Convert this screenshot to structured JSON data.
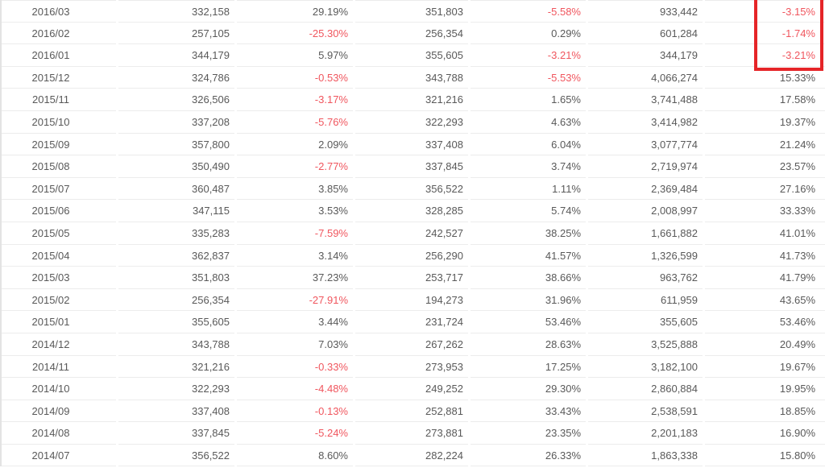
{
  "colors": {
    "background": "#ffffff",
    "text": "#595959",
    "negative_text": "#f0565e",
    "row_border": "#ececec",
    "left_edge": "#e3e3e3",
    "highlight_box": "#e52528"
  },
  "table": {
    "columns": [
      "month",
      "value_1",
      "pct_1",
      "value_2",
      "pct_2",
      "value_3",
      "pct_3"
    ],
    "rows": [
      [
        "2016/03",
        "332,158",
        "29.19%",
        "351,803",
        "-5.58%",
        "933,442",
        "-3.15%"
      ],
      [
        "2016/02",
        "257,105",
        "-25.30%",
        "256,354",
        "0.29%",
        "601,284",
        "-1.74%"
      ],
      [
        "2016/01",
        "344,179",
        "5.97%",
        "355,605",
        "-3.21%",
        "344,179",
        "-3.21%"
      ],
      [
        "2015/12",
        "324,786",
        "-0.53%",
        "343,788",
        "-5.53%",
        "4,066,274",
        "15.33%"
      ],
      [
        "2015/11",
        "326,506",
        "-3.17%",
        "321,216",
        "1.65%",
        "3,741,488",
        "17.58%"
      ],
      [
        "2015/10",
        "337,208",
        "-5.76%",
        "322,293",
        "4.63%",
        "3,414,982",
        "19.37%"
      ],
      [
        "2015/09",
        "357,800",
        "2.09%",
        "337,408",
        "6.04%",
        "3,077,774",
        "21.24%"
      ],
      [
        "2015/08",
        "350,490",
        "-2.77%",
        "337,845",
        "3.74%",
        "2,719,974",
        "23.57%"
      ],
      [
        "2015/07",
        "360,487",
        "3.85%",
        "356,522",
        "1.11%",
        "2,369,484",
        "27.16%"
      ],
      [
        "2015/06",
        "347,115",
        "3.53%",
        "328,285",
        "5.74%",
        "2,008,997",
        "33.33%"
      ],
      [
        "2015/05",
        "335,283",
        "-7.59%",
        "242,527",
        "38.25%",
        "1,661,882",
        "41.01%"
      ],
      [
        "2015/04",
        "362,837",
        "3.14%",
        "256,290",
        "41.57%",
        "1,326,599",
        "41.73%"
      ],
      [
        "2015/03",
        "351,803",
        "37.23%",
        "253,717",
        "38.66%",
        "963,762",
        "41.79%"
      ],
      [
        "2015/02",
        "256,354",
        "-27.91%",
        "194,273",
        "31.96%",
        "611,959",
        "43.65%"
      ],
      [
        "2015/01",
        "355,605",
        "3.44%",
        "231,724",
        "53.46%",
        "355,605",
        "53.46%"
      ],
      [
        "2014/12",
        "343,788",
        "7.03%",
        "267,262",
        "28.63%",
        "3,525,888",
        "20.49%"
      ],
      [
        "2014/11",
        "321,216",
        "-0.33%",
        "273,953",
        "17.25%",
        "3,182,100",
        "19.67%"
      ],
      [
        "2014/10",
        "322,293",
        "-4.48%",
        "249,252",
        "29.30%",
        "2,860,884",
        "19.95%"
      ],
      [
        "2014/09",
        "337,408",
        "-0.13%",
        "252,881",
        "33.43%",
        "2,538,591",
        "18.85%"
      ],
      [
        "2014/08",
        "337,845",
        "-5.24%",
        "273,881",
        "23.35%",
        "2,201,183",
        "16.90%"
      ],
      [
        "2014/07",
        "356,522",
        "8.60%",
        "282,224",
        "26.33%",
        "1,863,338",
        "15.80%"
      ]
    ]
  },
  "annotation": {
    "type": "red-box",
    "rows_highlighted": [
      "2016/03",
      "2016/02",
      "2016/01"
    ],
    "column_highlighted": "pct_3"
  }
}
